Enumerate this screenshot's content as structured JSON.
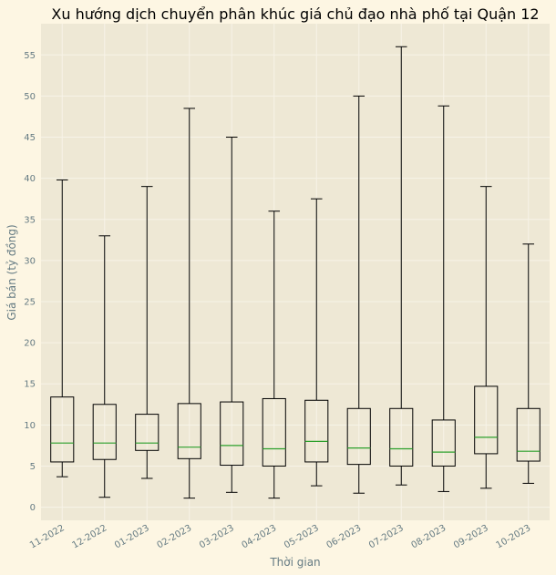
{
  "chart_data": {
    "type": "boxplot",
    "title": "Xu hướng dịch chuyển phân khúc giá chủ đạo nhà phố tại Quận 12",
    "xlabel": "Thời gian",
    "ylabel": "Giá bán (tỷ đồng)",
    "ylim": [
      -1.6,
      58.8
    ],
    "yticks": [
      0,
      5,
      10,
      15,
      20,
      25,
      30,
      35,
      40,
      45,
      50,
      55
    ],
    "grid": true,
    "colors": {
      "figure_bg": "#fdf6e3",
      "plot_bg": "#eee8d5",
      "grid": "#f7f3e8",
      "box": "#000000",
      "median": "#2ca02c",
      "text": "#657b83"
    },
    "categories": [
      "11-2022",
      "12-2022",
      "01-2023",
      "02-2023",
      "03-2023",
      "04-2023",
      "05-2023",
      "06-2023",
      "07-2023",
      "08-2023",
      "09-2023",
      "10-2023"
    ],
    "boxes": [
      {
        "whisker_low": 3.7,
        "q1": 5.5,
        "median": 7.8,
        "q3": 13.4,
        "whisker_high": 39.8
      },
      {
        "whisker_low": 1.2,
        "q1": 5.8,
        "median": 7.8,
        "q3": 12.5,
        "whisker_high": 33.0
      },
      {
        "whisker_low": 3.5,
        "q1": 6.9,
        "median": 7.8,
        "q3": 11.3,
        "whisker_high": 39.0
      },
      {
        "whisker_low": 1.1,
        "q1": 5.9,
        "median": 7.3,
        "q3": 12.6,
        "whisker_high": 48.5
      },
      {
        "whisker_low": 1.8,
        "q1": 5.1,
        "median": 7.5,
        "q3": 12.8,
        "whisker_high": 45.0
      },
      {
        "whisker_low": 1.1,
        "q1": 5.0,
        "median": 7.1,
        "q3": 13.2,
        "whisker_high": 36.0
      },
      {
        "whisker_low": 2.6,
        "q1": 5.5,
        "median": 8.0,
        "q3": 13.0,
        "whisker_high": 37.5
      },
      {
        "whisker_low": 1.7,
        "q1": 5.2,
        "median": 7.2,
        "q3": 12.0,
        "whisker_high": 50.0
      },
      {
        "whisker_low": 2.7,
        "q1": 5.0,
        "median": 7.1,
        "q3": 12.0,
        "whisker_high": 56.0
      },
      {
        "whisker_low": 1.9,
        "q1": 5.0,
        "median": 6.7,
        "q3": 10.6,
        "whisker_high": 48.8
      },
      {
        "whisker_low": 2.3,
        "q1": 6.5,
        "median": 8.5,
        "q3": 14.7,
        "whisker_high": 39.0
      },
      {
        "whisker_low": 2.9,
        "q1": 5.6,
        "median": 6.8,
        "q3": 12.0,
        "whisker_high": 32.0
      }
    ]
  }
}
